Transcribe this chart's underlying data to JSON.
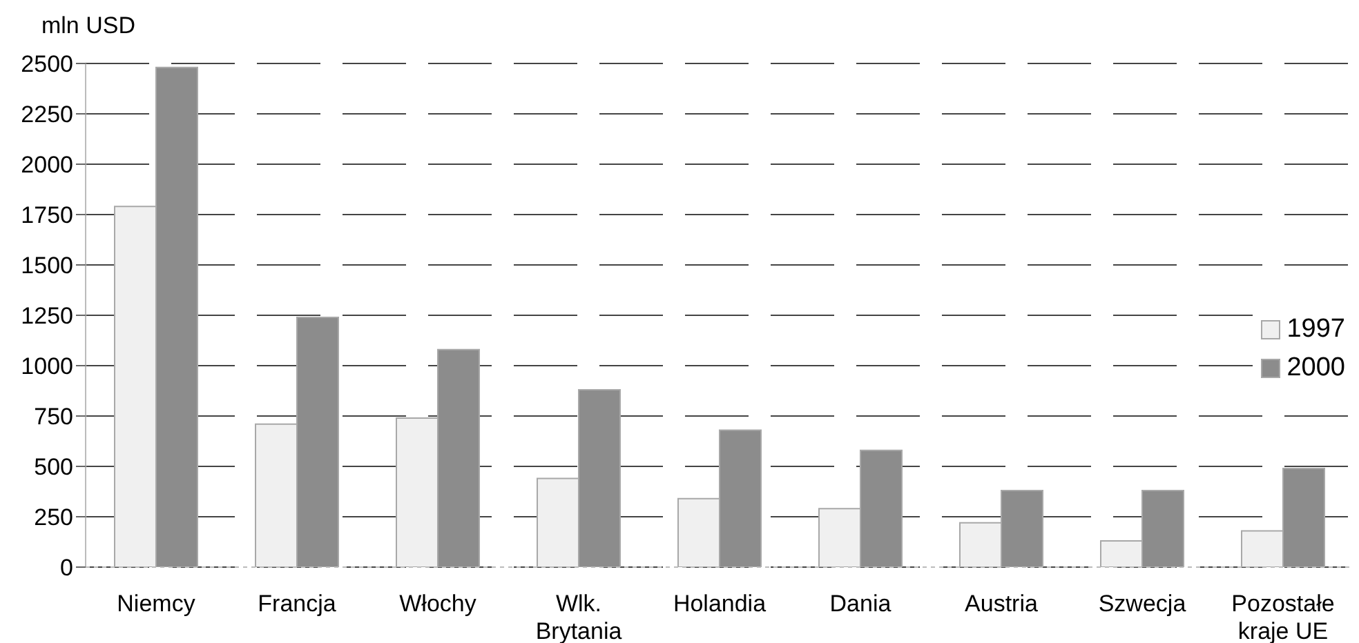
{
  "chart_data": {
    "type": "bar",
    "ylabel": "mln USD",
    "categories": [
      "Niemcy",
      "Francja",
      "Włochy",
      "Wlk. Brytania",
      "Holandia",
      "Dania",
      "Austria",
      "Szwecja",
      "Pozostałe kraje UE"
    ],
    "series": [
      {
        "name": "1997",
        "color": "#f0f0f0",
        "values": [
          1790,
          710,
          740,
          440,
          340,
          290,
          220,
          130,
          180
        ]
      },
      {
        "name": "2000",
        "color": "#8c8c8c",
        "values": [
          2480,
          1240,
          1080,
          880,
          680,
          580,
          380,
          380,
          490
        ]
      }
    ],
    "ylim": [
      0,
      2500
    ],
    "yticks": [
      0,
      250,
      500,
      750,
      1000,
      1250,
      1500,
      1750,
      2000,
      2250,
      2500
    ],
    "grid": "y",
    "legend": "right"
  }
}
